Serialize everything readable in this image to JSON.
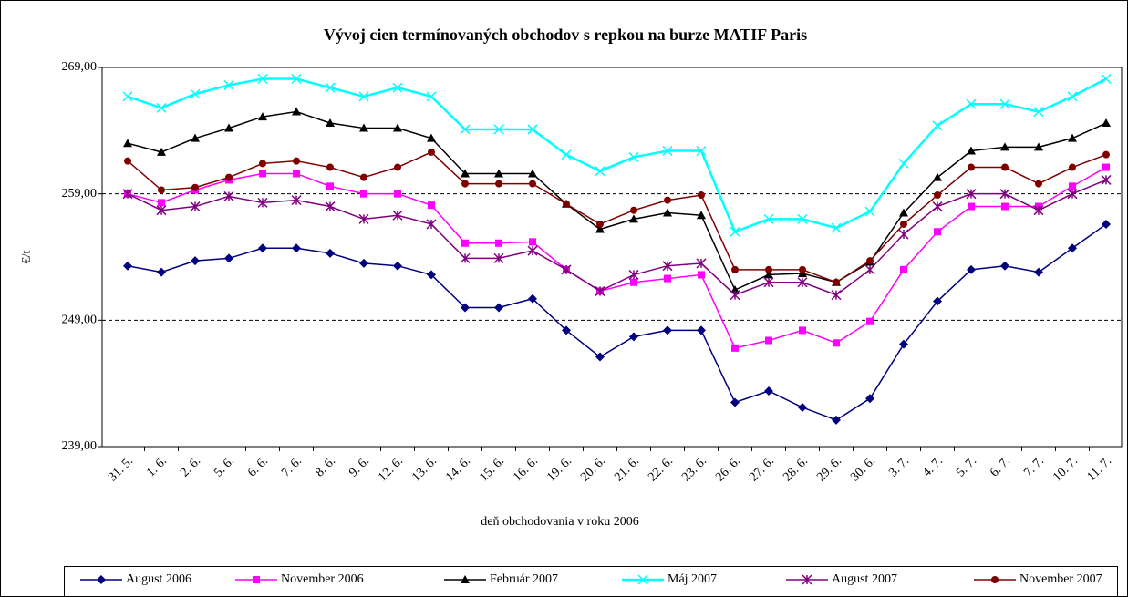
{
  "chart_data": {
    "type": "line",
    "title": "Vývoj cien termínovaných obchodov s repkou na burze MATIF Paris",
    "x_label": "deň obchodovania v roku 2006",
    "y_label": "€/t",
    "categories": [
      "31. 5.",
      "1. 6.",
      "2. 6.",
      "5. 6.",
      "6. 6.",
      "7. 6.",
      "8. 6.",
      "9. 6.",
      "12. 6.",
      "13. 6.",
      "14. 6.",
      "15. 6.",
      "16. 6.",
      "19. 6.",
      "20. 6.",
      "21. 6.",
      "22. 6.",
      "23. 6.",
      "26. 6.",
      "27. 6.",
      "28. 6.",
      "29. 6.",
      "30. 6.",
      "3. 7.",
      "4. 7.",
      "5. 7.",
      "6. 7.",
      "7. 7.",
      "10. 7.",
      "11. 7."
    ],
    "ylim": [
      239,
      269
    ],
    "yticks": [
      {
        "value": 239,
        "label": "239,00"
      },
      {
        "value": 249,
        "label": "249,00"
      },
      {
        "value": 259,
        "label": "259,00"
      },
      {
        "value": 269,
        "label": "269,00"
      }
    ],
    "grid": true,
    "legend": "bottom",
    "series": [
      {
        "name": "August 2006",
        "color": "#000080",
        "marker": "diamond",
        "values": [
          253.3,
          252.8,
          253.7,
          253.9,
          254.7,
          254.7,
          254.3,
          253.5,
          253.3,
          252.6,
          250.0,
          250.0,
          250.7,
          248.2,
          246.1,
          247.7,
          248.2,
          248.2,
          242.5,
          243.4,
          242.1,
          241.1,
          242.8,
          247.1,
          250.5,
          253.0,
          253.3,
          252.8,
          254.7,
          256.6
        ]
      },
      {
        "name": "November 2006",
        "color": "#ff00ff",
        "marker": "square",
        "values": [
          259.0,
          258.3,
          259.3,
          260.1,
          260.6,
          260.6,
          259.6,
          259.0,
          259.0,
          258.1,
          255.1,
          255.1,
          255.2,
          253.0,
          251.3,
          252.0,
          252.3,
          252.6,
          246.8,
          247.4,
          248.2,
          247.2,
          248.9,
          253.0,
          256.0,
          258.0,
          258.0,
          258.0,
          259.6,
          261.1
        ]
      },
      {
        "name": "Február 2007",
        "color": "#000000",
        "marker": "triangle",
        "values": [
          263.0,
          262.3,
          263.4,
          264.2,
          265.1,
          265.5,
          264.6,
          264.2,
          264.2,
          263.4,
          260.6,
          260.6,
          260.6,
          258.2,
          256.2,
          257.0,
          257.5,
          257.3,
          251.4,
          252.6,
          252.7,
          252.0,
          253.6,
          257.5,
          260.3,
          262.4,
          262.7,
          262.7,
          263.4,
          264.6
        ]
      },
      {
        "name": "Máj  2007",
        "color": "#00ffff",
        "marker": "x",
        "values": [
          266.7,
          265.8,
          266.9,
          267.6,
          268.1,
          268.1,
          267.4,
          266.7,
          267.4,
          266.7,
          264.1,
          264.1,
          264.1,
          262.1,
          260.8,
          261.9,
          262.4,
          262.4,
          256.0,
          257.0,
          257.0,
          256.3,
          257.6,
          261.4,
          264.4,
          266.1,
          266.1,
          265.5,
          266.7,
          268.1
        ]
      },
      {
        "name": "August 2007",
        "color": "#800080",
        "marker": "asterisk",
        "values": [
          259.0,
          257.7,
          258.0,
          258.8,
          258.3,
          258.5,
          258.0,
          257.0,
          257.3,
          256.6,
          253.9,
          253.9,
          254.5,
          253.0,
          251.3,
          252.6,
          253.3,
          253.5,
          251.0,
          252.0,
          252.0,
          251.0,
          253.0,
          255.8,
          258.0,
          259.0,
          259.0,
          257.7,
          259.0,
          260.1
        ]
      },
      {
        "name": "November 2007",
        "color": "#800000",
        "marker": "circle",
        "values": [
          261.6,
          259.3,
          259.5,
          260.3,
          261.4,
          261.6,
          261.1,
          260.3,
          261.1,
          262.3,
          259.8,
          259.8,
          259.8,
          258.2,
          256.6,
          257.7,
          258.5,
          258.9,
          253.0,
          253.0,
          253.0,
          252.0,
          253.7,
          256.6,
          258.9,
          261.1,
          261.1,
          259.8,
          261.1,
          262.1
        ]
      }
    ]
  }
}
